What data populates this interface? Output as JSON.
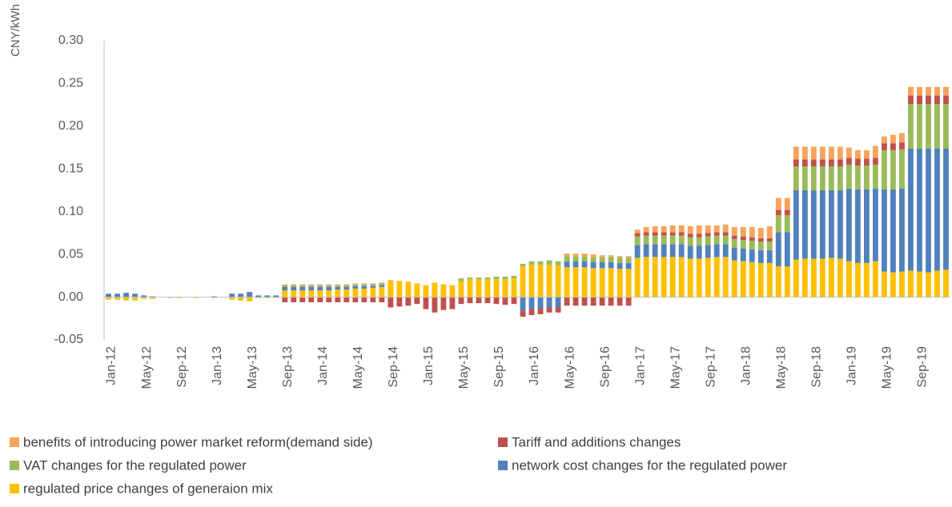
{
  "chart_data": {
    "type": "stacked_bar",
    "y_axis_label": "CNY/kWh",
    "categories": [
      "Jan-12",
      null,
      null,
      null,
      "May-12",
      null,
      null,
      null,
      "Sep-12",
      null,
      null,
      null,
      "Jan-13",
      null,
      null,
      null,
      "May-13",
      null,
      null,
      null,
      "Sep-13",
      null,
      null,
      null,
      "Jan-14",
      null,
      null,
      null,
      "May-14",
      null,
      null,
      null,
      "Sep-14",
      null,
      null,
      null,
      "Jan-15",
      null,
      null,
      null,
      "May-15",
      null,
      null,
      null,
      "Sep-15",
      null,
      null,
      null,
      "Jan-16",
      null,
      null,
      null,
      "May-16",
      null,
      null,
      null,
      "Sep-16",
      null,
      null,
      null,
      "Jan-17",
      null,
      null,
      null,
      "May-17",
      null,
      null,
      null,
      "Sep-17",
      null,
      null,
      null,
      "Jan-18",
      null,
      null,
      null,
      "May-18",
      null,
      null,
      null,
      "Sep-18",
      null,
      null,
      null,
      "Jan-19",
      null,
      null,
      null,
      "May-19",
      null,
      null,
      null,
      "Sep-19",
      null,
      null,
      null
    ],
    "ylim": [
      -0.05,
      0.3
    ],
    "yticks": [
      {
        "value": -0.05,
        "label": "-0.05"
      },
      {
        "value": 0,
        "label": "0.00"
      },
      {
        "value": 0.05,
        "label": "0.05"
      },
      {
        "value": 0.1,
        "label": "0.10"
      },
      {
        "value": 0.15,
        "label": "0.15"
      },
      {
        "value": 0.2,
        "label": "0.20"
      },
      {
        "value": 0.25,
        "label": "0.25"
      },
      {
        "value": 0.3,
        "label": "0.30"
      }
    ],
    "grid": false,
    "legend_position": "bottom",
    "series": [
      {
        "name": "benefits of introducing power market reform(demand side)",
        "color": "#f7a35c",
        "values": [
          0,
          0,
          0,
          0,
          0,
          0,
          0,
          0,
          0,
          0,
          0,
          0,
          0,
          0,
          0,
          0,
          0,
          0,
          0,
          0,
          0.001,
          0.001,
          0.001,
          0.001,
          0.001,
          0.001,
          0.001,
          0.001,
          0.001,
          0.001,
          0.001,
          0.001,
          0,
          0,
          0,
          0,
          0,
          0,
          0,
          0,
          0,
          0,
          0,
          0,
          0,
          0,
          0,
          0,
          0,
          0,
          0,
          0,
          0.003,
          0.003,
          0.003,
          0.003,
          0.002,
          0.002,
          0.002,
          0.002,
          0.004,
          0.006,
          0.007,
          0.007,
          0.008,
          0.008,
          0.009,
          0.01,
          0.009,
          0.008,
          0.009,
          0.01,
          0.011,
          0.012,
          0.012,
          0.014,
          0.014,
          0.014,
          0.015,
          0.015,
          0.015,
          0.015,
          0.015,
          0.015,
          0.012,
          0.01,
          0.01,
          0.014,
          0.008,
          0.01,
          0.011,
          0.01,
          0.01,
          0.01,
          0.01,
          0.01
        ]
      },
      {
        "name": "Tariff and additions changes",
        "color": "#c0504d",
        "values": [
          0,
          0,
          0,
          0,
          0,
          0,
          0,
          0,
          0,
          0,
          0,
          0,
          0,
          0,
          0,
          0,
          0,
          0,
          0,
          0,
          -0.006,
          -0.006,
          -0.006,
          -0.006,
          -0.006,
          -0.006,
          -0.006,
          -0.006,
          -0.006,
          -0.006,
          -0.006,
          -0.006,
          -0.012,
          -0.011,
          -0.01,
          -0.008,
          -0.014,
          -0.018,
          -0.015,
          -0.014,
          -0.008,
          -0.007,
          -0.007,
          -0.007,
          -0.008,
          -0.009,
          -0.008,
          -0.007,
          -0.007,
          -0.007,
          -0.006,
          -0.006,
          -0.01,
          -0.01,
          -0.01,
          -0.01,
          -0.01,
          -0.01,
          -0.01,
          -0.01,
          0.004,
          0.004,
          0.004,
          0.004,
          0.004,
          0.004,
          0.004,
          0.004,
          0.004,
          0.004,
          0.004,
          0.004,
          0.004,
          0.004,
          0.004,
          0.004,
          0.006,
          0.006,
          0.008,
          0.008,
          0.008,
          0.008,
          0.008,
          0.008,
          0.008,
          0.008,
          0.008,
          0.008,
          0.008,
          0.008,
          0.008,
          0.01,
          0.01,
          0.01,
          0.01,
          0.01
        ]
      },
      {
        "name": "VAT changes for the regulated power",
        "color": "#9bbb59",
        "values": [
          0,
          0,
          0,
          0,
          0,
          0,
          0,
          0,
          0,
          0,
          0,
          0,
          0,
          0,
          0,
          0,
          0,
          0,
          0,
          0,
          0.002,
          0.002,
          0.002,
          0.002,
          0.002,
          0.002,
          0.002,
          0.002,
          0.002,
          0.002,
          0.002,
          0.002,
          0,
          0,
          0,
          0,
          0,
          0,
          0,
          0,
          0.004,
          0.002,
          0.002,
          0.002,
          0.003,
          0.003,
          0.003,
          0.003,
          0.004,
          0.004,
          0.005,
          0.005,
          0.006,
          0.006,
          0.006,
          0.006,
          0.006,
          0.006,
          0.006,
          0.006,
          0.01,
          0.01,
          0.01,
          0.01,
          0.01,
          0.01,
          0.01,
          0.01,
          0.01,
          0.01,
          0.01,
          0.01,
          0.01,
          0.01,
          0.01,
          0.01,
          0.02,
          0.02,
          0.028,
          0.028,
          0.028,
          0.028,
          0.028,
          0.028,
          0.028,
          0.028,
          0.028,
          0.028,
          0.046,
          0.046,
          0.046,
          0.052,
          0.052,
          0.052,
          0.052,
          0.052
        ]
      },
      {
        "name": "network cost changes for the regulated power",
        "color": "#4f81bd",
        "values": [
          0.004,
          0.004,
          0.005,
          0.004,
          0.002,
          0.001,
          0,
          0,
          0,
          0,
          0,
          0,
          0.001,
          0,
          0.004,
          0.004,
          0.006,
          0.002,
          0.002,
          0.002,
          0.004,
          0.004,
          0.004,
          0.004,
          0.004,
          0.004,
          0.003,
          0.003,
          0.003,
          0.003,
          0.002,
          0.002,
          0,
          0,
          0,
          0,
          0,
          0,
          0,
          0,
          0,
          0,
          0,
          0,
          0,
          0,
          0,
          -0.016,
          -0.014,
          -0.013,
          -0.012,
          -0.012,
          0.007,
          0.007,
          0.007,
          0.007,
          0.007,
          0.007,
          0.007,
          0.007,
          0.015,
          0.015,
          0.015,
          0.015,
          0.015,
          0.015,
          0.015,
          0.015,
          0.015,
          0.015,
          0.015,
          0.015,
          0.015,
          0.015,
          0.015,
          0.015,
          0.04,
          0.04,
          0.081,
          0.08,
          0.08,
          0.08,
          0.079,
          0.08,
          0.085,
          0.086,
          0.086,
          0.085,
          0.096,
          0.097,
          0.097,
          0.143,
          0.144,
          0.145,
          0.143,
          0.142
        ]
      },
      {
        "name": "regulated price changes of generaion mix",
        "color": "#ffc000",
        "values": [
          -0.003,
          -0.003,
          -0.004,
          -0.004,
          -0.002,
          -0.002,
          0,
          -0.001,
          -0.001,
          0,
          -0.001,
          0,
          -0.001,
          0,
          -0.003,
          -0.004,
          -0.005,
          -0.001,
          -0.001,
          -0.001,
          0.008,
          0.008,
          0.008,
          0.008,
          0.008,
          0.008,
          0.009,
          0.009,
          0.01,
          0.01,
          0.011,
          0.012,
          0.02,
          0.019,
          0.018,
          0.016,
          0.014,
          0.017,
          0.015,
          0.014,
          0.018,
          0.021,
          0.021,
          0.021,
          0.021,
          0.021,
          0.022,
          0.036,
          0.038,
          0.038,
          0.038,
          0.037,
          0.035,
          0.035,
          0.035,
          0.034,
          0.034,
          0.034,
          0.033,
          0.033,
          0.046,
          0.047,
          0.047,
          0.047,
          0.047,
          0.047,
          0.045,
          0.045,
          0.046,
          0.047,
          0.047,
          0.043,
          0.042,
          0.041,
          0.04,
          0.04,
          0.036,
          0.036,
          0.044,
          0.045,
          0.045,
          0.045,
          0.046,
          0.045,
          0.042,
          0.04,
          0.04,
          0.042,
          0.03,
          0.029,
          0.03,
          0.031,
          0.03,
          0.029,
          0.031,
          0.032
        ]
      }
    ]
  }
}
